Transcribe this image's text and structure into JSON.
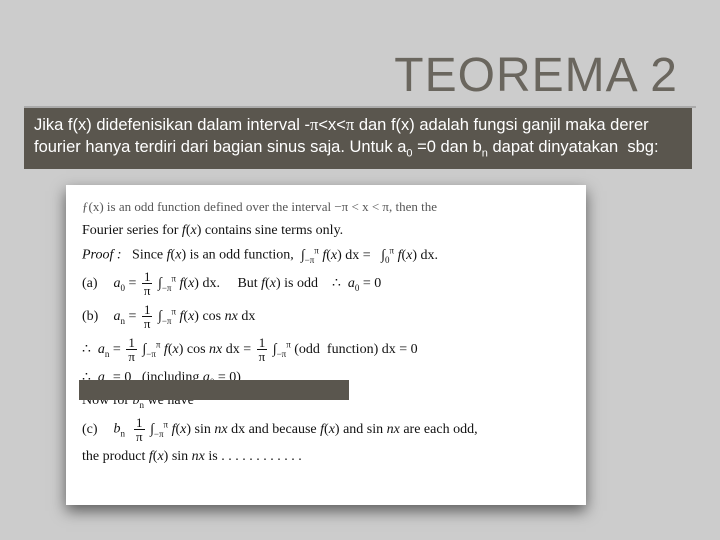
{
  "title": "TEOREMA 2",
  "description_html": "Jika f(x) didefenisikan dalam interval -<span class='pi'>π</span>&lt;x&lt;<span class='pi'>π</span> dan f(x) adalah fungsi ganjil maka derer fourier hanya terdiri dari bagian sinus saja. Untuk a<sub>0</sub> =0 dan b<sub>n</sub> dapat dinyatakan&nbsp; sbg:",
  "proof": {
    "top": "ƒ(x) is an odd function defined over the interval −π < x < π, then the",
    "l1": "Fourier series for <i>f</i>(<i>x</i>) contains sine terms only.",
    "pf_label": "Proof :",
    "pf_text": "Since <i>f</i>(<i>x</i>) is an odd function,",
    "pf_int": "∫<sub>−π</sub><sup>π</sup> <i>f</i>(<i>x</i>) dx = &nbsp; ∫<sub>0</sub><sup>π</sup> <i>f</i>(<i>x</i>) dx.",
    "a_label": "(a)",
    "a_text": "<i>a</i><sub>0</sub> =",
    "a_frac_num": "1",
    "a_frac_den": "π",
    "a_tail": "∫<sub>−π</sub><sup>π</sup> <i>f</i>(<i>x</i>) dx.&nbsp;&nbsp;&nbsp;&nbsp; But <i>f</i>(<i>x</i>) is odd &nbsp;&nbsp; ∴ &nbsp;<i>a</i><sub>0</sub> = 0",
    "b_label": "(b)",
    "b_text": "<i>a</i><sub>n</sub> =",
    "b_frac_num": "1",
    "b_frac_den": "π",
    "b_tail": "∫<sub>−π</sub><sup>π</sup> <i>f</i>(<i>x</i>) cos <i>nx</i> dx",
    "b2": "∴ &nbsp;<i>a</i><sub>n</sub> =",
    "b2_frac_num": "1",
    "b2_frac_den": "π",
    "b2_mid": "∫<sub>−π</sub><sup>π</sup> <i>f</i>(<i>x</i>) cos <i>nx</i> dx =",
    "b2_frac2_num": "1",
    "b2_frac2_den": "π",
    "b2_tail": "∫<sub>−π</sub><sup>π</sup> (odd &nbsp;function) dx = 0",
    "b3": "∴ &nbsp;<i>a</i><sub>n</sub> = 0 &nbsp;&nbsp;(including <i>a</i><sub>0</sub> = 0)",
    "now": "Now for <i>b</i><sub>n</sub> we have",
    "c_label": "(c)",
    "c_frac_num": "1",
    "c_frac_den": "π",
    "c_text": "∫<sub>−π</sub><sup>π</sup> <i>f</i>(<i>x</i>) sin <i>nx</i> dx and because <i>f</i>(<i>x</i>) and sin <i>nx</i> are each odd,",
    "last": "the product <i>f</i>(<i>x</i>) sin <i>nx</i> is . . . . . . . . . . . ."
  },
  "colors": {
    "slide_bg": "#cccccc",
    "title_color": "#6a665e",
    "box_bg": "#5a564e",
    "box_text": "#ffffff",
    "paper_bg": "#ffffff"
  }
}
